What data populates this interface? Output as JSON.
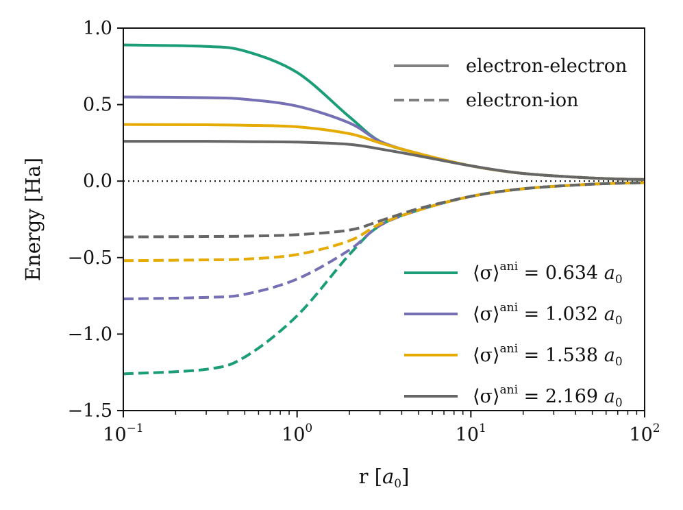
{
  "chart_data": {
    "type": "line",
    "xscale": "log",
    "xlim": [
      0.1,
      100
    ],
    "ylim": [
      -1.5,
      1.0
    ],
    "xlabel": "r [a0]",
    "xlabel_parts": {
      "text": "r [",
      "unit_var": "a",
      "unit_sub": "0",
      "close": "]"
    },
    "ylabel": "Energy [Ha]",
    "x_ticks": [
      {
        "value": 0.1,
        "base": "10",
        "exp": "−1"
      },
      {
        "value": 1,
        "base": "10",
        "exp": "0"
      },
      {
        "value": 10,
        "base": "10",
        "exp": "1"
      },
      {
        "value": 100,
        "base": "10",
        "exp": "2"
      }
    ],
    "y_ticks": [
      {
        "value": 1.0,
        "label": "1.0"
      },
      {
        "value": 0.5,
        "label": "0.5"
      },
      {
        "value": 0.0,
        "label": "0.0"
      },
      {
        "value": -0.5,
        "label": "−0.5"
      },
      {
        "value": -1.0,
        "label": "−1.0"
      },
      {
        "value": -1.5,
        "label": "−1.5"
      }
    ],
    "zero_reference_line": 0.0,
    "style_legend": [
      {
        "label": "electron-electron",
        "dash": "solid",
        "color": "#808080"
      },
      {
        "label": "electron-ion",
        "dash": "dashed",
        "color": "#808080"
      }
    ],
    "legend_prefix": "⟨σ⟩",
    "legend_sup": "ani",
    "legend_unit_var": "a",
    "legend_unit_sub": "0",
    "legend_location": "lower-right",
    "style_legend_location": "upper-right",
    "series": [
      {
        "name": "⟨σ⟩ani = 0.634 a0",
        "sigma_label": "0.634",
        "color": "#1b9e77",
        "electron_electron": {
          "x": [
            0.1,
            0.3,
            0.5,
            1,
            2,
            3,
            5,
            10,
            20,
            50,
            100
          ],
          "y": [
            0.89,
            0.88,
            0.85,
            0.71,
            0.42,
            0.26,
            0.18,
            0.1,
            0.05,
            0.02,
            0.01
          ]
        },
        "electron_ion": {
          "x": [
            0.1,
            0.3,
            0.5,
            1,
            2,
            3,
            5,
            10,
            20,
            50,
            100
          ],
          "y": [
            -1.26,
            -1.23,
            -1.15,
            -0.88,
            -0.48,
            -0.29,
            -0.19,
            -0.1,
            -0.05,
            -0.02,
            -0.01
          ]
        }
      },
      {
        "name": "⟨σ⟩ani = 1.032 a0",
        "sigma_label": "1.032",
        "color": "#7570b3",
        "electron_electron": {
          "x": [
            0.1,
            0.3,
            0.5,
            1,
            2,
            3,
            5,
            10,
            20,
            50,
            100
          ],
          "y": [
            0.55,
            0.545,
            0.535,
            0.49,
            0.38,
            0.26,
            0.18,
            0.1,
            0.05,
            0.02,
            0.01
          ]
        },
        "electron_ion": {
          "x": [
            0.1,
            0.3,
            0.5,
            1,
            2,
            3,
            5,
            10,
            20,
            50,
            100
          ],
          "y": [
            -0.77,
            -0.76,
            -0.74,
            -0.64,
            -0.45,
            -0.29,
            -0.19,
            -0.1,
            -0.05,
            -0.02,
            -0.01
          ]
        }
      },
      {
        "name": "⟨σ⟩ani = 1.538 a0",
        "sigma_label": "1.538",
        "color": "#e6ab02",
        "electron_electron": {
          "x": [
            0.1,
            0.3,
            0.5,
            1,
            2,
            3,
            5,
            10,
            20,
            50,
            100
          ],
          "y": [
            0.37,
            0.368,
            0.365,
            0.355,
            0.31,
            0.25,
            0.18,
            0.1,
            0.05,
            0.02,
            0.01
          ]
        },
        "electron_ion": {
          "x": [
            0.1,
            0.3,
            0.5,
            1,
            2,
            3,
            5,
            10,
            20,
            50,
            100
          ],
          "y": [
            -0.52,
            -0.515,
            -0.51,
            -0.48,
            -0.39,
            -0.28,
            -0.19,
            -0.1,
            -0.05,
            -0.02,
            -0.01
          ]
        }
      },
      {
        "name": "⟨σ⟩ani = 2.169 a0",
        "sigma_label": "2.169",
        "color": "#666666",
        "electron_electron": {
          "x": [
            0.1,
            0.3,
            0.5,
            1,
            2,
            3,
            5,
            10,
            20,
            50,
            100
          ],
          "y": [
            0.26,
            0.26,
            0.258,
            0.255,
            0.24,
            0.21,
            0.165,
            0.1,
            0.05,
            0.02,
            0.01
          ]
        },
        "electron_ion": {
          "x": [
            0.1,
            0.3,
            0.5,
            1,
            2,
            3,
            5,
            10,
            20,
            50,
            100
          ],
          "y": [
            -0.365,
            -0.362,
            -0.36,
            -0.35,
            -0.32,
            -0.26,
            -0.18,
            -0.1,
            -0.05,
            -0.02,
            -0.01
          ]
        }
      }
    ]
  }
}
